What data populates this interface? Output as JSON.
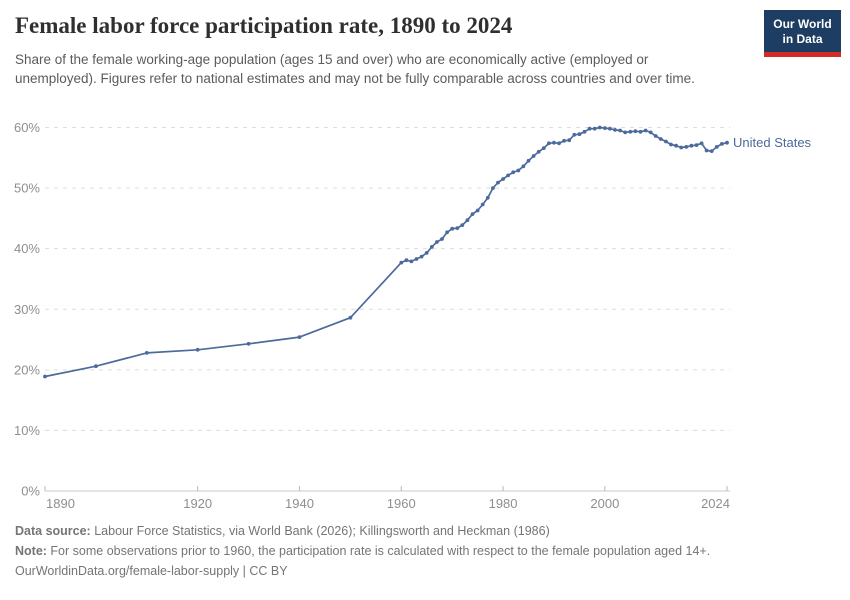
{
  "header": {
    "title": "Female labor force participation rate, 1890 to 2024",
    "subtitle": "Share of the female working-age population (ages 15 and over) who are economically active (employed or unemployed). Figures refer to national estimates and may not be fully comparable across countries and over time.",
    "logo": {
      "line1": "Our World",
      "line2": "in Data",
      "bg_color": "#1d3d63",
      "stripe_color": "#d42b27"
    }
  },
  "chart_data": {
    "type": "line",
    "title": "Female labor force participation rate, 1890 to 2024",
    "xlabel": "",
    "ylabel": "",
    "xlim": [
      1890,
      2024
    ],
    "ylim": [
      0,
      60
    ],
    "x_ticks": [
      1890,
      1920,
      1940,
      1960,
      1980,
      2000,
      2024
    ],
    "y_ticks": [
      0,
      10,
      20,
      30,
      40,
      50,
      60
    ],
    "y_tick_labels": [
      "0%",
      "10%",
      "20%",
      "30%",
      "40%",
      "50%",
      "60%"
    ],
    "grid": "horizontal-dashed",
    "legend": "end-of-line-label",
    "colors": {
      "line": "#4c6a9c",
      "gridline": "#dcdcdc",
      "axis": "#c8c8c8",
      "tick_text": "#8f8f8f"
    },
    "series": [
      {
        "name": "United States",
        "color": "#4c6a9c",
        "points": [
          [
            1890,
            18.9
          ],
          [
            1900,
            20.6
          ],
          [
            1910,
            22.8
          ],
          [
            1920,
            23.3
          ],
          [
            1930,
            24.3
          ],
          [
            1940,
            25.4
          ],
          [
            1950,
            28.6
          ],
          [
            1960,
            37.7
          ],
          [
            1961,
            38.1
          ],
          [
            1962,
            37.9
          ],
          [
            1963,
            38.3
          ],
          [
            1964,
            38.7
          ],
          [
            1965,
            39.3
          ],
          [
            1966,
            40.3
          ],
          [
            1967,
            41.1
          ],
          [
            1968,
            41.6
          ],
          [
            1969,
            42.7
          ],
          [
            1970,
            43.3
          ],
          [
            1971,
            43.4
          ],
          [
            1972,
            43.9
          ],
          [
            1973,
            44.7
          ],
          [
            1974,
            45.7
          ],
          [
            1975,
            46.3
          ],
          [
            1976,
            47.3
          ],
          [
            1977,
            48.4
          ],
          [
            1978,
            50.0
          ],
          [
            1979,
            50.9
          ],
          [
            1980,
            51.5
          ],
          [
            1981,
            52.1
          ],
          [
            1982,
            52.6
          ],
          [
            1983,
            52.9
          ],
          [
            1984,
            53.6
          ],
          [
            1985,
            54.5
          ],
          [
            1986,
            55.3
          ],
          [
            1987,
            56.0
          ],
          [
            1988,
            56.6
          ],
          [
            1989,
            57.4
          ],
          [
            1990,
            57.5
          ],
          [
            1991,
            57.4
          ],
          [
            1992,
            57.8
          ],
          [
            1993,
            57.9
          ],
          [
            1994,
            58.8
          ],
          [
            1995,
            58.9
          ],
          [
            1996,
            59.3
          ],
          [
            1997,
            59.8
          ],
          [
            1998,
            59.8
          ],
          [
            1999,
            60.0
          ],
          [
            2000,
            59.9
          ],
          [
            2001,
            59.8
          ],
          [
            2002,
            59.6
          ],
          [
            2003,
            59.5
          ],
          [
            2004,
            59.2
          ],
          [
            2005,
            59.3
          ],
          [
            2006,
            59.4
          ],
          [
            2007,
            59.3
          ],
          [
            2008,
            59.5
          ],
          [
            2009,
            59.2
          ],
          [
            2010,
            58.6
          ],
          [
            2011,
            58.1
          ],
          [
            2012,
            57.7
          ],
          [
            2013,
            57.2
          ],
          [
            2014,
            57.0
          ],
          [
            2015,
            56.7
          ],
          [
            2016,
            56.8
          ],
          [
            2017,
            57.0
          ],
          [
            2018,
            57.1
          ],
          [
            2019,
            57.4
          ],
          [
            2020,
            56.2
          ],
          [
            2021,
            56.1
          ],
          [
            2022,
            56.8
          ],
          [
            2023,
            57.3
          ],
          [
            2024,
            57.5
          ]
        ]
      }
    ]
  },
  "footer": {
    "datasource_label": "Data source:",
    "datasource_text": " Labour Force Statistics, via World Bank (2026); Killingsworth and Heckman (1986)",
    "note_label": "Note:",
    "note_text": " For some observations prior to 1960, the participation rate is calculated with respect to the female population aged 14+.",
    "attribution": "OurWorldinData.org/female-labor-supply | CC BY"
  }
}
